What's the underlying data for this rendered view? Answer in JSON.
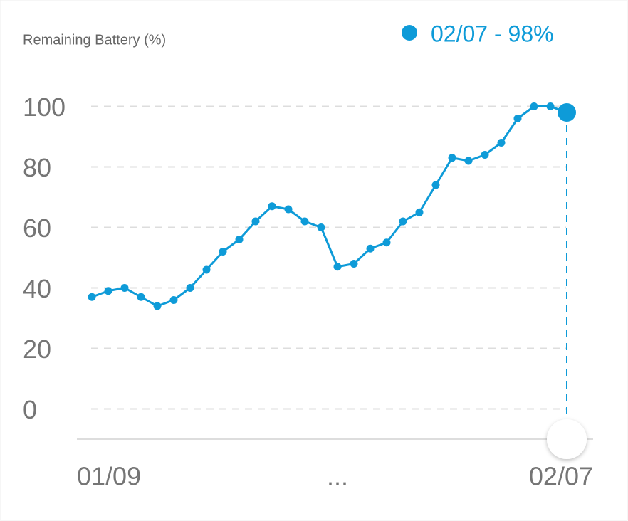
{
  "chart_data": {
    "type": "line",
    "y_label": "Remaining Battery (%)",
    "selected_label": "02/07 - 98%",
    "categories": [
      "01/09",
      null,
      null,
      null,
      null,
      null,
      null,
      null,
      null,
      null,
      null,
      null,
      null,
      null,
      null,
      "...",
      null,
      null,
      null,
      null,
      null,
      null,
      null,
      null,
      null,
      null,
      null,
      null,
      null,
      "02/07"
    ],
    "series": [
      {
        "name": "Remaining Battery",
        "color": "#0e9bd8",
        "values": [
          37,
          39,
          40,
          37,
          34,
          36,
          40,
          46,
          52,
          56,
          62,
          67,
          66,
          62,
          60,
          47,
          48,
          53,
          55,
          62,
          65,
          74,
          83,
          82,
          84,
          88,
          96,
          100,
          100,
          98
        ]
      }
    ],
    "ylim": [
      -10,
      110
    ],
    "yticks": [
      0,
      20,
      40,
      60,
      80,
      100
    ],
    "grid": true
  }
}
